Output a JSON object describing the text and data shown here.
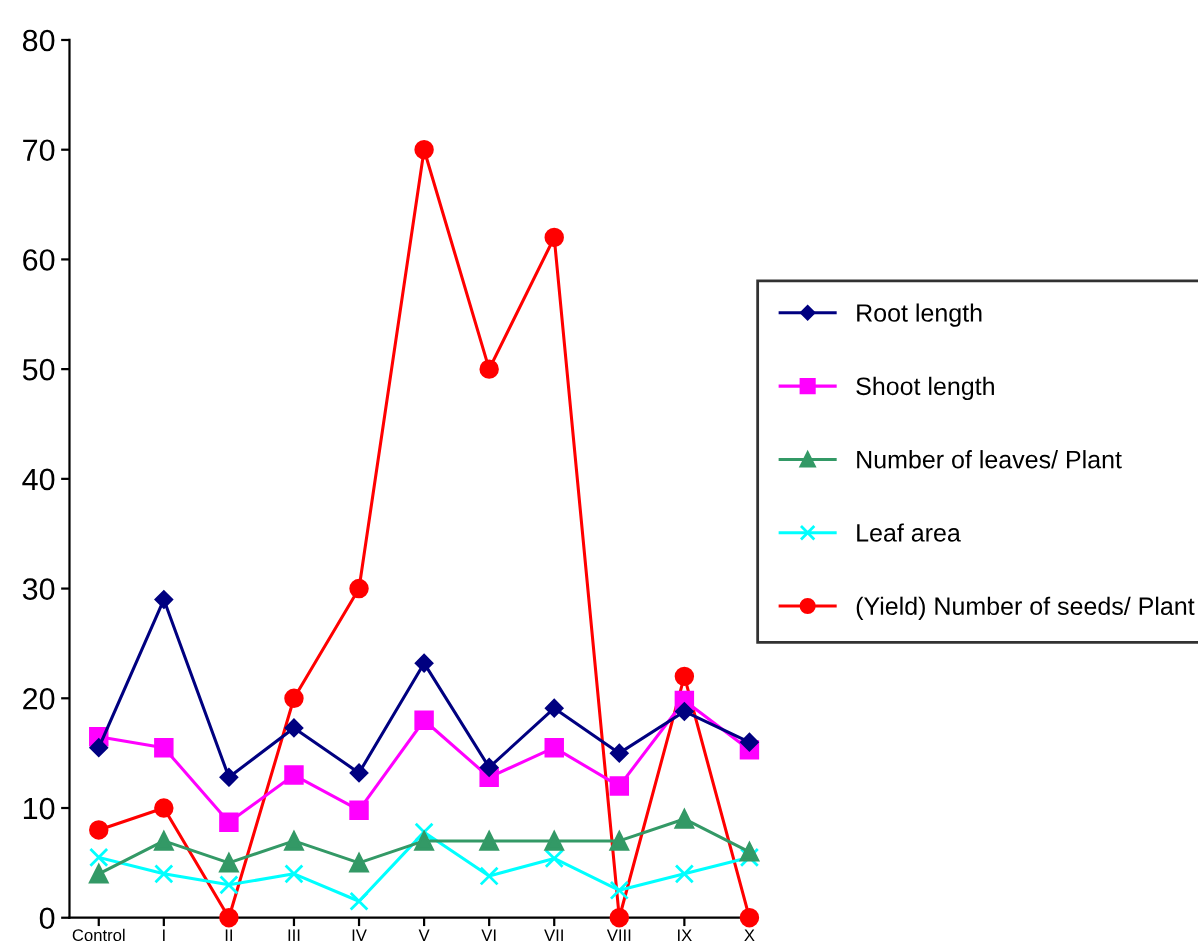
{
  "chart_data": {
    "type": "line",
    "categories": [
      "Control",
      "I",
      "II",
      "III",
      "IV",
      "V",
      "VI",
      "VII",
      "VIII",
      "IX",
      "X"
    ],
    "ylim": [
      0,
      80
    ],
    "yticks": [
      0,
      10,
      20,
      30,
      40,
      50,
      60,
      70,
      80
    ],
    "grid": false,
    "legend": "right",
    "series": [
      {
        "name": "Root length",
        "color": "#000080",
        "marker": "diamond",
        "values": [
          15.5,
          29,
          12.8,
          17.3,
          13.2,
          23.2,
          13.7,
          19.1,
          15,
          18.8,
          16
        ]
      },
      {
        "name": "Shoot length",
        "color": "#ff00ff",
        "marker": "square",
        "values": [
          16.5,
          15.5,
          8.7,
          13,
          9.8,
          18,
          12.8,
          15.5,
          12,
          19.8,
          15.3
        ]
      },
      {
        "name": "Number of leaves/ Plant",
        "color": "#339966",
        "marker": "triangle",
        "values": [
          4,
          7,
          5,
          7,
          5,
          7,
          7,
          7,
          7,
          9,
          6
        ]
      },
      {
        "name": "Leaf area",
        "color": "#00ffff",
        "marker": "cross",
        "values": [
          5.5,
          4,
          3,
          4,
          1.5,
          7.8,
          3.8,
          5.4,
          2.5,
          4,
          5.5
        ]
      },
      {
        "name": "(Yield) Number of seeds/ Plant",
        "color": "#ff0000",
        "marker": "circle",
        "values": [
          8,
          10,
          0,
          20,
          30,
          70,
          50,
          62,
          0,
          22,
          0
        ]
      }
    ]
  }
}
